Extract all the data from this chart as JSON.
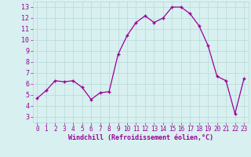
{
  "x": [
    0,
    1,
    2,
    3,
    4,
    5,
    6,
    7,
    8,
    9,
    10,
    11,
    12,
    13,
    14,
    15,
    16,
    17,
    18,
    19,
    20,
    21,
    22,
    23
  ],
  "y": [
    4.7,
    5.4,
    6.3,
    6.2,
    6.3,
    5.7,
    4.6,
    5.2,
    5.3,
    8.7,
    10.4,
    11.6,
    12.2,
    11.6,
    12.0,
    13.0,
    13.0,
    12.4,
    11.3,
    9.5,
    6.7,
    6.3,
    3.3,
    6.5
  ],
  "line_color": "#990099",
  "marker": "+",
  "marker_size": 3,
  "bg_color": "#d8f0f0",
  "grid_color": "#b8d8d8",
  "xlabel": "Windchill (Refroidissement éolien,°C)",
  "xlabel_color": "#990099",
  "tick_color": "#990099",
  "xlim": [
    -0.5,
    23.5
  ],
  "ylim": [
    2.5,
    13.5
  ],
  "yticks": [
    3,
    4,
    5,
    6,
    7,
    8,
    9,
    10,
    11,
    12,
    13
  ],
  "xticks": [
    0,
    1,
    2,
    3,
    4,
    5,
    6,
    7,
    8,
    9,
    10,
    11,
    12,
    13,
    14,
    15,
    16,
    17,
    18,
    19,
    20,
    21,
    22,
    23
  ]
}
